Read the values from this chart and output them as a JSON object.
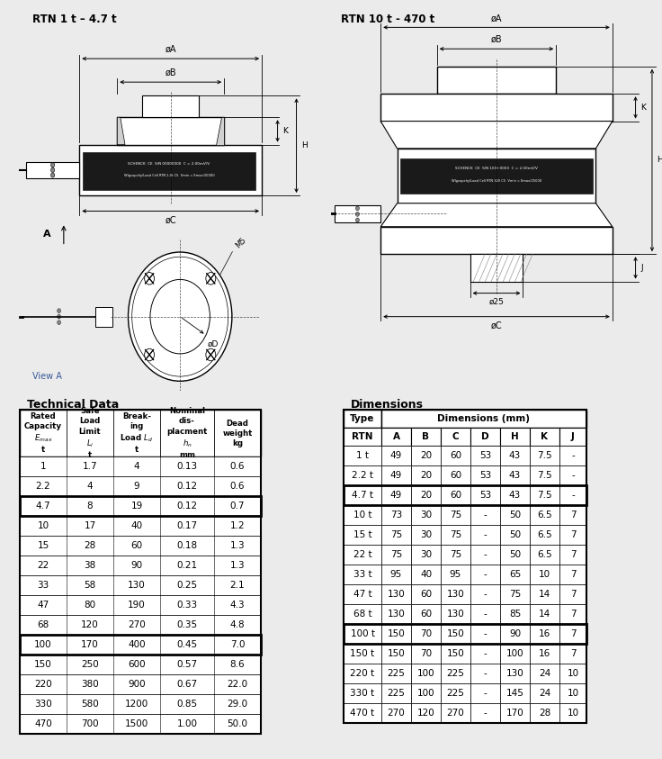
{
  "title_left": "RTN 1 t – 4.7 t",
  "title_right": "RTN 10 t - 470 t",
  "section_title_left": "Technical Data",
  "section_title_right": "Dimensions",
  "tech_data": [
    [
      "1",
      "1.7",
      "4",
      "0.13",
      "0.6"
    ],
    [
      "2.2",
      "4",
      "9",
      "0.12",
      "0.6"
    ],
    [
      "4.7",
      "8",
      "19",
      "0.12",
      "0.7"
    ],
    [
      "10",
      "17",
      "40",
      "0.17",
      "1.2"
    ],
    [
      "15",
      "28",
      "60",
      "0.18",
      "1.3"
    ],
    [
      "22",
      "38",
      "90",
      "0.21",
      "1.3"
    ],
    [
      "33",
      "58",
      "130",
      "0.25",
      "2.1"
    ],
    [
      "47",
      "80",
      "190",
      "0.33",
      "4.3"
    ],
    [
      "68",
      "120",
      "270",
      "0.35",
      "4.8"
    ],
    [
      "100",
      "170",
      "400",
      "0.45",
      "7.0"
    ],
    [
      "150",
      "250",
      "600",
      "0.57",
      "8.6"
    ],
    [
      "220",
      "380",
      "900",
      "0.67",
      "22.0"
    ],
    [
      "330",
      "580",
      "1200",
      "0.85",
      "29.0"
    ],
    [
      "470",
      "700",
      "1500",
      "1.00",
      "50.0"
    ]
  ],
  "tech_bold_rows": [
    2,
    9
  ],
  "dim_data": [
    [
      "1 t",
      "49",
      "20",
      "60",
      "53",
      "43",
      "7.5",
      "-"
    ],
    [
      "2.2 t",
      "49",
      "20",
      "60",
      "53",
      "43",
      "7.5",
      "-"
    ],
    [
      "4.7 t",
      "49",
      "20",
      "60",
      "53",
      "43",
      "7.5",
      "-"
    ],
    [
      "10 t",
      "73",
      "30",
      "75",
      "-",
      "50",
      "6.5",
      "7"
    ],
    [
      "15 t",
      "75",
      "30",
      "75",
      "-",
      "50",
      "6.5",
      "7"
    ],
    [
      "22 t",
      "75",
      "30",
      "75",
      "-",
      "50",
      "6.5",
      "7"
    ],
    [
      "33 t",
      "95",
      "40",
      "95",
      "-",
      "65",
      "10",
      "7"
    ],
    [
      "47 t",
      "130",
      "60",
      "130",
      "-",
      "75",
      "14",
      "7"
    ],
    [
      "68 t",
      "130",
      "60",
      "130",
      "-",
      "85",
      "14",
      "7"
    ],
    [
      "100 t",
      "150",
      "70",
      "150",
      "-",
      "90",
      "16",
      "7"
    ],
    [
      "150 t",
      "150",
      "70",
      "150",
      "-",
      "100",
      "16",
      "7"
    ],
    [
      "220 t",
      "225",
      "100",
      "225",
      "-",
      "130",
      "24",
      "10"
    ],
    [
      "330 t",
      "225",
      "100",
      "225",
      "-",
      "145",
      "24",
      "10"
    ],
    [
      "470 t",
      "270",
      "120",
      "270",
      "-",
      "170",
      "28",
      "10"
    ]
  ],
  "dim_bold_rows": [
    2,
    9
  ],
  "bg_color": "#ebebeb",
  "white": "#ffffff",
  "black": "#000000",
  "dark_box": "#1a1a1a",
  "teal": "#007070",
  "gray_sidebar": "#6e6e7e",
  "label_color_tech": "#3a5a9a",
  "label_color_dim": "#3a5a9a"
}
